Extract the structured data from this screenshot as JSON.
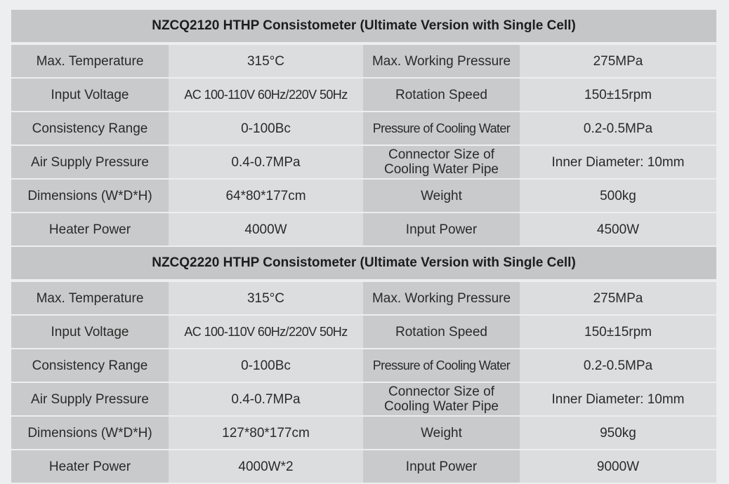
{
  "tables": [
    {
      "title": "NZCQ2120 HTHP Consistometer (Ultimate Version with Single Cell)",
      "rows": [
        [
          "Max. Temperature",
          "315°C",
          "Max. Working Pressure",
          "275MPa"
        ],
        [
          "Input Voltage",
          "AC 100-110V 60Hz/220V 50Hz",
          "Rotation Speed",
          "150±15rpm"
        ],
        [
          "Consistency Range",
          "0-100Bc",
          "Pressure of Cooling Water",
          "0.2-0.5MPa"
        ],
        [
          "Air Supply Pressure",
          "0.4-0.7MPa",
          "Connector Size of Cooling Water Pipe",
          "Inner Diameter: 10mm"
        ],
        [
          "Dimensions (W*D*H)",
          "64*80*177cm",
          "Weight",
          "500kg"
        ],
        [
          "Heater Power",
          "4000W",
          "Input Power",
          "4500W"
        ]
      ]
    },
    {
      "title": "NZCQ2220 HTHP Consistometer (Ultimate Version with Single Cell)",
      "rows": [
        [
          "Max. Temperature",
          "315°C",
          "Max. Working Pressure",
          "275MPa"
        ],
        [
          "Input Voltage",
          "AC 100-110V 60Hz/220V 50Hz",
          "Rotation Speed",
          "150±15rpm"
        ],
        [
          "Consistency Range",
          "0-100Bc",
          "Pressure of Cooling Water",
          "0.2-0.5MPa"
        ],
        [
          "Air Supply Pressure",
          "0.4-0.7MPa",
          "Connector Size of Cooling Water Pipe",
          "Inner Diameter: 10mm"
        ],
        [
          "Dimensions (W*D*H)",
          "127*80*177cm",
          "Weight",
          "950kg"
        ],
        [
          "Heater Power",
          "4000W*2",
          "Input Power",
          "9000W"
        ]
      ]
    }
  ]
}
